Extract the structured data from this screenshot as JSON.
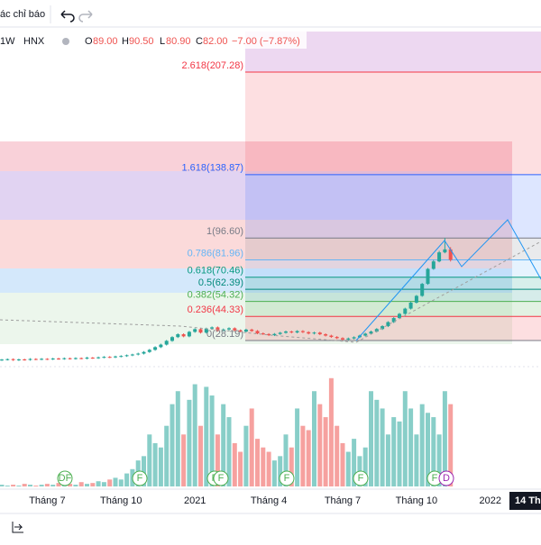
{
  "toolbar": {
    "indicators": "ác chỉ báo"
  },
  "legend": {
    "interval": "1W",
    "exchange": "HNX",
    "open_label": "O",
    "open": "89.00",
    "high_label": "H",
    "high": "90.50",
    "low_label": "L",
    "low": "80.90",
    "close_label": "C",
    "close": "82.00",
    "change": "−7.00 (−7.87%)"
  },
  "crosshair_label": "14 Th",
  "events": [
    "DF",
    "F",
    "F",
    "F",
    "F",
    "F",
    "F",
    "D"
  ],
  "chart_data": {
    "type": "candlestick",
    "categories": [
      null,
      null,
      null,
      null,
      null,
      null,
      null,
      null,
      "Tháng 7",
      null,
      null,
      null,
      null,
      null,
      null,
      null,
      null,
      null,
      null,
      null,
      null,
      "Tháng 10",
      null,
      null,
      null,
      null,
      null,
      null,
      null,
      null,
      null,
      null,
      null,
      null,
      "2021",
      null,
      null,
      null,
      null,
      null,
      null,
      null,
      null,
      null,
      null,
      null,
      null,
      "Tháng 4",
      null,
      null,
      null,
      null,
      null,
      null,
      null,
      null,
      null,
      null,
      null,
      null,
      "Tháng 7",
      null,
      null,
      null,
      null,
      null,
      null,
      null,
      null,
      null,
      null,
      null,
      null,
      "Tháng 10",
      null,
      null,
      null,
      null,
      null,
      null,
      null,
      null,
      null,
      null,
      null,
      null,
      "2022"
    ],
    "open": [
      15.2,
      15.5,
      15.8,
      15.2,
      15.6,
      15.4,
      15.9,
      15.7,
      16.0,
      15.8,
      16.2,
      16.0,
      16.4,
      16.1,
      16.5,
      16.3,
      16.8,
      16.6,
      17.0,
      17.3,
      17.1,
      17.6,
      17.9,
      18.4,
      18.9,
      19.5,
      20.6,
      22.0,
      23.8,
      25.5,
      28.0,
      30.5,
      32.4,
      31.0,
      34.0,
      35.8,
      33.5,
      36.2,
      37.0,
      34.8,
      35.6,
      36.4,
      35.0,
      34.2,
      35.5,
      34.6,
      33.0,
      32.5,
      31.8,
      32.6,
      33.4,
      34.2,
      33.6,
      34.5,
      33.8,
      32.9,
      33.5,
      32.4,
      31.5,
      30.6,
      29.8,
      28.9,
      29.6,
      30.4,
      31.5,
      32.8,
      34.2,
      35.9,
      37.8,
      40.5,
      43.2,
      46.0,
      49.5,
      53.5,
      58.0,
      66.0,
      76.0,
      81.0,
      87.0,
      89.0,
      null,
      null,
      null,
      null,
      null,
      null,
      null
    ],
    "high": [
      15.9,
      16.2,
      16.3,
      16.1,
      16.1,
      16.4,
      16.4,
      16.5,
      16.4,
      16.7,
      16.7,
      16.9,
      16.8,
      17.0,
      16.9,
      17.3,
      17.2,
      17.5,
      17.8,
      17.8,
      18.1,
      18.4,
      18.9,
      19.4,
      20.1,
      21.2,
      22.6,
      24.4,
      26.1,
      28.6,
      31.1,
      33.0,
      33.0,
      34.6,
      36.4,
      36.4,
      36.8,
      37.6,
      37.6,
      36.2,
      37.0,
      37.0,
      35.6,
      36.1,
      36.1,
      35.2,
      33.6,
      33.1,
      33.2,
      34.0,
      34.8,
      34.8,
      35.1,
      35.1,
      34.4,
      34.1,
      34.1,
      33.0,
      32.1,
      31.2,
      30.4,
      30.2,
      31.0,
      32.1,
      33.4,
      34.8,
      36.5,
      38.4,
      41.1,
      43.8,
      46.6,
      50.1,
      54.1,
      58.6,
      66.6,
      76.6,
      82.0,
      88.0,
      96.6,
      90.5,
      null,
      null,
      null,
      null,
      null,
      null,
      null
    ],
    "low": [
      14.6,
      14.9,
      14.6,
      14.6,
      14.8,
      14.8,
      15.1,
      15.1,
      15.2,
      15.2,
      15.4,
      15.4,
      15.5,
      15.5,
      15.7,
      15.7,
      16.0,
      16.0,
      16.4,
      16.5,
      16.5,
      17.0,
      17.3,
      17.8,
      18.3,
      18.9,
      20.0,
      21.4,
      23.2,
      24.9,
      27.4,
      29.9,
      30.4,
      30.4,
      33.4,
      32.9,
      32.9,
      35.6,
      34.2,
      34.2,
      35.0,
      34.4,
      33.6,
      33.6,
      34.0,
      32.4,
      31.9,
      31.2,
      31.2,
      32.0,
      32.8,
      33.0,
      33.0,
      33.2,
      32.3,
      32.3,
      31.8,
      30.9,
      30.0,
      29.2,
      28.3,
      28.3,
      29.0,
      29.8,
      30.9,
      32.2,
      33.6,
      35.3,
      37.2,
      39.9,
      42.6,
      45.4,
      48.9,
      52.9,
      57.4,
      65.4,
      75.4,
      80.4,
      86.4,
      80.9,
      null,
      null,
      null,
      null,
      null,
      null,
      null
    ],
    "close": [
      15.5,
      15.8,
      15.2,
      15.6,
      15.4,
      15.9,
      15.7,
      16.0,
      15.8,
      16.2,
      16.0,
      16.4,
      16.1,
      16.5,
      16.3,
      16.8,
      16.6,
      17.0,
      17.3,
      17.1,
      17.6,
      17.9,
      18.4,
      18.9,
      19.5,
      20.6,
      22.0,
      23.8,
      25.5,
      28.0,
      30.5,
      32.4,
      31.0,
      34.0,
      35.8,
      33.5,
      36.2,
      37.0,
      34.8,
      35.6,
      36.4,
      35.0,
      34.2,
      35.5,
      34.6,
      33.0,
      32.5,
      31.8,
      32.6,
      33.4,
      34.2,
      33.6,
      34.5,
      33.8,
      32.9,
      33.5,
      32.4,
      31.5,
      30.6,
      29.8,
      28.9,
      29.6,
      30.4,
      31.5,
      32.8,
      34.2,
      35.9,
      37.8,
      40.5,
      43.2,
      46.0,
      49.5,
      53.5,
      58.0,
      66.0,
      76.0,
      81.0,
      87.0,
      89.0,
      82.0,
      null,
      null,
      null,
      null,
      null,
      null,
      null
    ],
    "volume": [
      2,
      1,
      2,
      1,
      3,
      2,
      1,
      2,
      3,
      2,
      4,
      2,
      3,
      2,
      5,
      3,
      4,
      6,
      5,
      8,
      10,
      8,
      15,
      20,
      30,
      35,
      60,
      50,
      45,
      70,
      95,
      110,
      60,
      100,
      118,
      70,
      115,
      105,
      60,
      95,
      80,
      50,
      40,
      70,
      90,
      55,
      45,
      40,
      30,
      35,
      60,
      45,
      90,
      70,
      65,
      110,
      95,
      80,
      125,
      70,
      50,
      40,
      55,
      35,
      45,
      110,
      100,
      90,
      60,
      80,
      75,
      110,
      90,
      60,
      95,
      85,
      80,
      60,
      110,
      95,
      null,
      null,
      null,
      null,
      null,
      null,
      null
    ],
    "ylim": [
      9,
      234.3
    ],
    "vlim": [
      0,
      130
    ],
    "up_color": "#26a69a",
    "down_color": "#ef5350",
    "fib_levels": [
      {
        "value": 207.28,
        "label": "2.618(207.28)",
        "color": "#f23645"
      },
      {
        "value": 138.87,
        "label": "1.618(138.87)",
        "color": "#2962ff"
      },
      {
        "value": 96.6,
        "label": "1(96.60)",
        "color": "#787b86"
      },
      {
        "value": 81.96,
        "label": "0.786(81.96)",
        "color": "#64b5f6"
      },
      {
        "value": 70.46,
        "label": "0.618(70.46)",
        "color": "#089981"
      },
      {
        "value": 62.39,
        "label": "0.5(62.39)",
        "color": "#00897b"
      },
      {
        "value": 54.32,
        "label": "0.382(54.32)",
        "color": "#4caf50"
      },
      {
        "value": 44.33,
        "label": "0.236(44.33)",
        "color": "#f23645"
      },
      {
        "value": 28.19,
        "label": "0(28.19)",
        "color": "#787b86"
      }
    ]
  }
}
